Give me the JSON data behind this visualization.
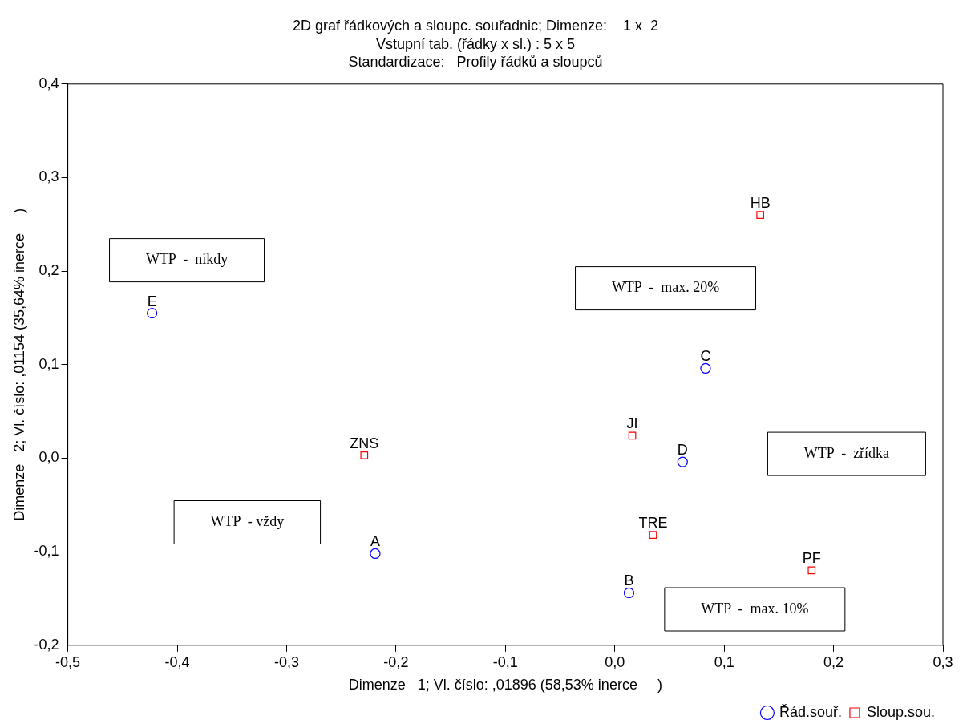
{
  "chart_data": {
    "type": "scatter",
    "title": "2D graf řádkových a sloupc. souřadnic; Dimenze:    1 x  2",
    "subtitle": "Vstupní tab. (řádky x sl.) : 5 x 5\nStandardizace:   Profily řádků a sloupců",
    "xlabel": "Dimenze   1; Vl. číslo: ,01896 (58,53% inerce     )",
    "ylabel": "Dimenze   2; Vl. číslo: ,01154 (35,64% inerce     )",
    "series": [
      {
        "name": "Řád.souř.",
        "color": "#0000ff",
        "marker": "circle",
        "x": [
          -0.423,
          -0.219,
          0.013,
          0.083,
          0.062
        ],
        "values": [
          0.155,
          -0.102,
          -0.144,
          0.096,
          -0.004
        ],
        "value_labels": [
          "E",
          "A",
          "B",
          "C",
          "D"
        ]
      },
      {
        "name": "Sloup.sou.",
        "color": "#ff0000",
        "marker": "square",
        "x": [
          0.133,
          -0.229,
          0.016,
          0.035,
          0.18
        ],
        "values": [
          0.26,
          0.003,
          0.024,
          -0.082,
          -0.12
        ],
        "value_labels": [
          "HB",
          "ZNS",
          "JI",
          "TRE",
          "PF"
        ]
      }
    ],
    "annotations": [
      "WTP  -  nikdy",
      "WTP  -  max. 20%",
      "WTP  -  zřídka",
      "WTP  - vždy",
      "WTP  -  max. 10%"
    ],
    "xlim": [
      -0.5,
      0.3
    ],
    "ylim": [
      -0.2,
      0.4
    ],
    "xticks": [
      {
        "value": -0.5,
        "label": "-0,5"
      },
      {
        "value": -0.4,
        "label": "-0,4"
      },
      {
        "value": -0.3,
        "label": "-0,3"
      },
      {
        "value": -0.2,
        "label": "-0,2"
      },
      {
        "value": -0.1,
        "label": "-0,1"
      },
      {
        "value": 0,
        "label": "0,0"
      },
      {
        "value": 0.1,
        "label": "0,1"
      },
      {
        "value": 0.2,
        "label": "0,2"
      },
      {
        "value": 0.3,
        "label": "0,3"
      }
    ],
    "yticks": [
      {
        "value": -0.2,
        "label": "-0,2"
      },
      {
        "value": -0.1,
        "label": "-0,1"
      },
      {
        "value": 0,
        "label": "0,0"
      },
      {
        "value": 0.1,
        "label": "0,1"
      },
      {
        "value": 0.2,
        "label": "0,2"
      },
      {
        "value": 0.3,
        "label": "0,3"
      },
      {
        "value": 0.4,
        "label": "0,4"
      }
    ],
    "grid": false,
    "legend": "bottom right"
  }
}
